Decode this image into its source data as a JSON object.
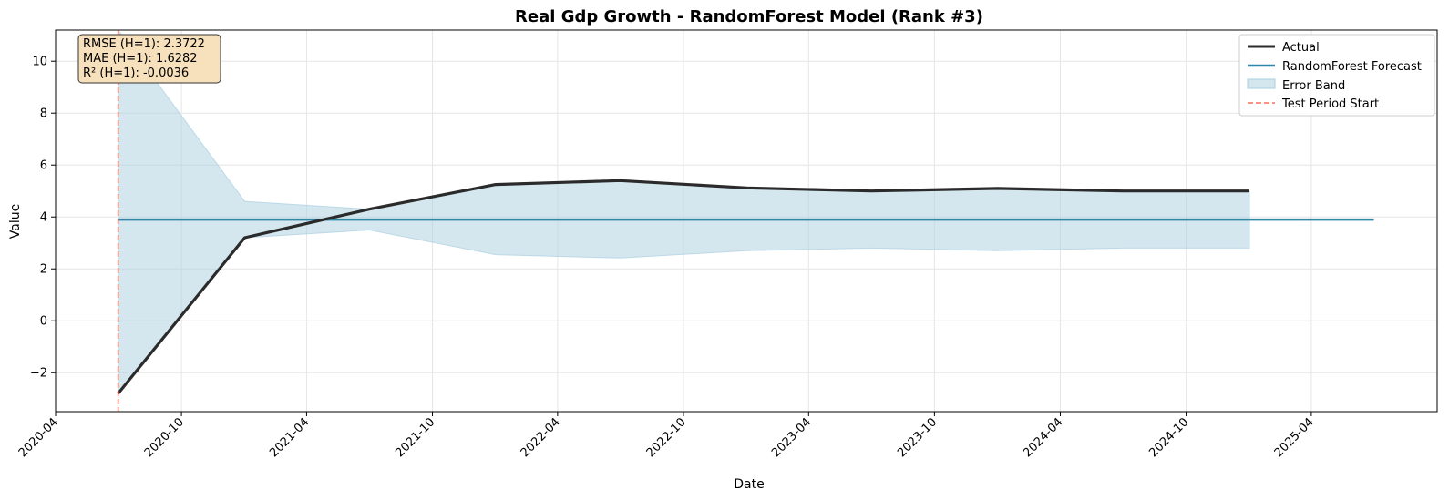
{
  "chart_data": {
    "type": "line",
    "title": "Real Gdp Growth - RandomForest Model (Rank #3)",
    "xlabel": "Date",
    "ylabel": "Value",
    "xlim": [
      "2020-04-01",
      "2025-10-01"
    ],
    "ylim": [
      -3.5,
      11.2
    ],
    "x_ticks": [
      "2020-04",
      "2020-10",
      "2021-04",
      "2021-10",
      "2022-04",
      "2022-10",
      "2023-04",
      "2023-10",
      "2024-04",
      "2024-10",
      "2025-04"
    ],
    "y_ticks": [
      -2,
      0,
      2,
      4,
      6,
      8,
      10
    ],
    "grid": true,
    "legend_position": "top-right",
    "series": [
      {
        "name": "Actual",
        "color": "#2b2b2b",
        "x": [
          "2020-07-01",
          "2021-01-01",
          "2021-07-01",
          "2022-01-01",
          "2022-07-01",
          "2023-01-01",
          "2023-07-01",
          "2024-01-01",
          "2024-07-01",
          "2025-01-01"
        ],
        "values": [
          -2.8,
          3.2,
          4.3,
          5.25,
          5.4,
          5.12,
          5.0,
          5.1,
          5.0,
          5.0
        ]
      },
      {
        "name": "RandomForest Forecast",
        "color": "#2e86ab",
        "x": [
          "2020-07-01",
          "2025-07-01"
        ],
        "values": [
          3.9,
          3.9
        ]
      }
    ],
    "error_band": {
      "name": "Error Band",
      "color": "#a9cfe0",
      "x": [
        "2020-07-01",
        "2021-01-01",
        "2021-07-01",
        "2022-01-01",
        "2022-07-01",
        "2023-01-01",
        "2023-07-01",
        "2024-01-01",
        "2024-07-01",
        "2025-01-01"
      ],
      "upper": [
        11.2,
        4.6,
        4.3,
        5.25,
        5.4,
        5.12,
        5.0,
        5.1,
        5.0,
        5.0
      ],
      "lower": [
        -2.8,
        3.2,
        3.5,
        2.55,
        2.42,
        2.7,
        2.8,
        2.7,
        2.8,
        2.8
      ]
    },
    "vline": {
      "name": "Test Period Start",
      "x": "2020-07-01",
      "color": "#ff6b5b"
    },
    "metrics": [
      "RMSE (H=1): 2.3722",
      "MAE (H=1): 1.6282",
      "R² (H=1): -0.0036"
    ],
    "legend": [
      "Actual",
      "RandomForest Forecast",
      "Error Band",
      "Test Period Start"
    ]
  }
}
